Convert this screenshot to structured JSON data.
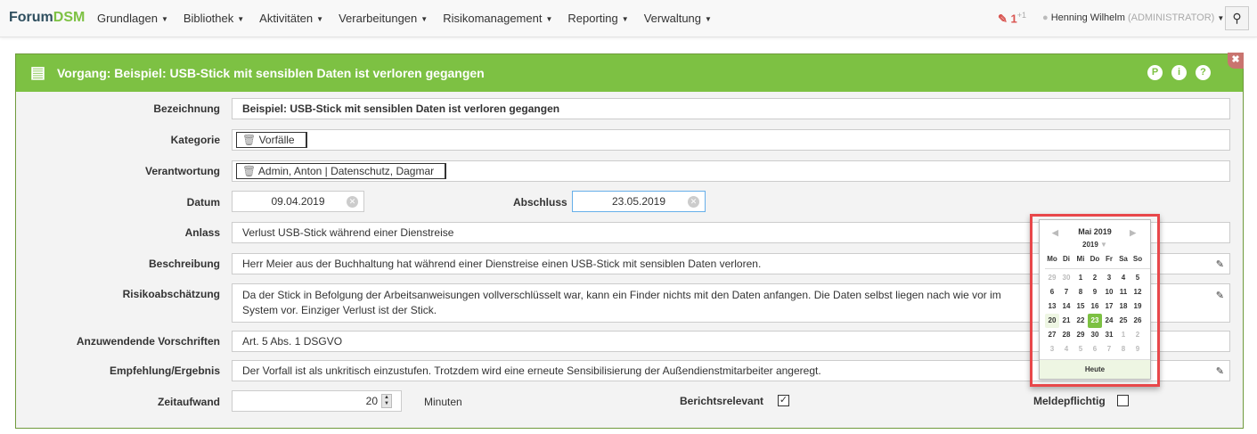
{
  "nav": {
    "brand_a": "Forum",
    "brand_b": "DSM",
    "menu": [
      "Grundlagen",
      "Bibliothek",
      "Aktivitäten",
      "Verarbeitungen",
      "Risikomanagement",
      "Reporting",
      "Verwaltung"
    ],
    "edits": "1",
    "edits_sup": "+1",
    "user": "Henning Wilhelm",
    "role": "(ADMINISTRATOR)"
  },
  "panel": {
    "title": "Vorgang: Beispiel: USB-Stick mit sensiblen Daten ist verloren gegangen",
    "accent": "#7dc143"
  },
  "form": {
    "bezeichnung": {
      "label": "Bezeichnung",
      "value": "Beispiel: USB-Stick mit sensiblen Daten ist verloren gegangen"
    },
    "kategorie": {
      "label": "Kategorie",
      "value": "Vorfälle"
    },
    "verantwortung": {
      "label": "Verantwortung",
      "value": "Admin, Anton | Datenschutz, Dagmar"
    },
    "datum": {
      "label": "Datum",
      "value": "09.04.2019"
    },
    "abschluss": {
      "label": "Abschluss",
      "value": "23.05.2019"
    },
    "anlass": {
      "label": "Anlass",
      "value": "Verlust USB-Stick während einer Dienstreise"
    },
    "beschreibung": {
      "label": "Beschreibung",
      "value": "Herr Meier aus der Buchhaltung hat während einer Dienstreise einen USB-Stick mit sensiblen Daten verloren."
    },
    "risiko": {
      "label": "Risikoabschätzung",
      "value": "Da der Stick in Befolgung der Arbeitsanweisungen vollverschlüsselt war, kann ein Finder nichts mit den Daten anfangen. Die Daten selbst liegen nach wie vor im System vor. Einziger Verlust ist der Stick."
    },
    "vorschriften": {
      "label": "Anzuwendende Vorschriften",
      "value": "Art. 5 Abs. 1 DSGVO"
    },
    "empfehlung": {
      "label": "Empfehlung/Ergebnis",
      "value": "Der Vorfall ist als unkritisch einzustufen. Trotzdem wird eine erneute Sensibilisierung der Außendienstmitarbeiter angeregt."
    },
    "zeitaufwand": {
      "label": "Zeitaufwand",
      "value": "20",
      "unit": "Minuten"
    },
    "berichtsrelevant": {
      "label": "Berichtsrelevant",
      "checked": true
    },
    "meldepflichtig": {
      "label": "Meldepflichtig",
      "checked": false
    }
  },
  "calendar": {
    "month": "Mai 2019",
    "year": "2019",
    "weekdays": [
      "Mo",
      "Di",
      "Mi",
      "Do",
      "Fr",
      "Sa",
      "So"
    ],
    "days": [
      "29",
      "30",
      "1",
      "2",
      "3",
      "4",
      "5",
      "6",
      "7",
      "8",
      "9",
      "10",
      "11",
      "12",
      "13",
      "14",
      "15",
      "16",
      "17",
      "18",
      "19",
      "20",
      "21",
      "22",
      "23",
      "24",
      "25",
      "26",
      "27",
      "28",
      "29",
      "30",
      "31",
      "1",
      "2",
      "3",
      "4",
      "5",
      "6",
      "7",
      "8",
      "9"
    ],
    "today": "20",
    "selected": "23",
    "today_button": "Heute"
  }
}
